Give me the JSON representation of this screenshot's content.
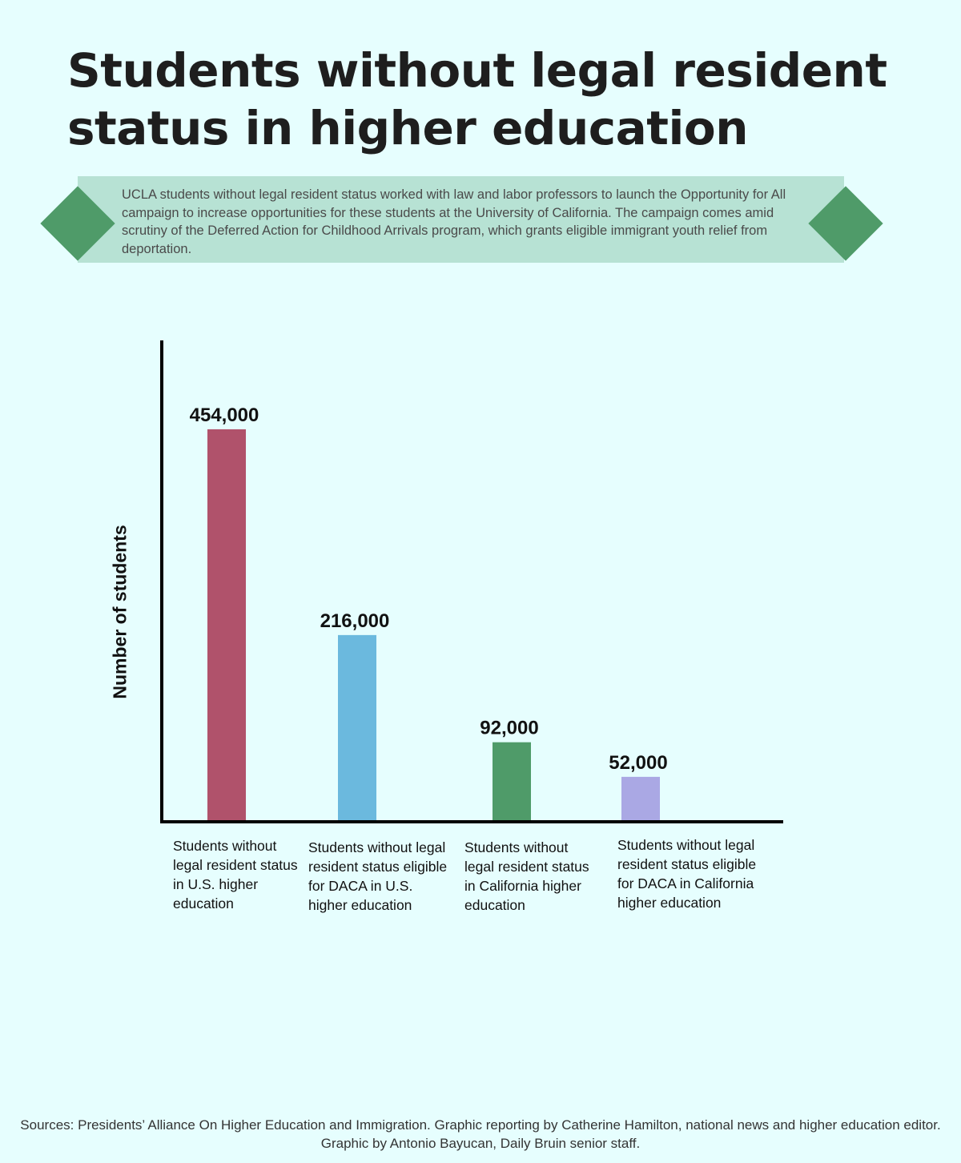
{
  "header": {
    "title": "Students without legal resident status in higher education",
    "intro": "UCLA students without legal resident status worked with law and labor professors to launch the Opportunity for All campaign to increase opportunities for these students at the University of California. The campaign comes amid scrutiny of the Deferred Action for Childhood Arrivals program, which grants eligible immigrant youth relief from deportation."
  },
  "colors": {
    "background": "#e6fefe",
    "banner": "#b7e2d4",
    "diamond": "#4f9b69"
  },
  "chart_data": {
    "type": "bar",
    "title": "Students without legal resident status in higher education",
    "xlabel": "",
    "ylabel": "Number of students",
    "ylim": [
      0,
      500000
    ],
    "grid": false,
    "legend": "none",
    "categories": [
      "Students without legal resident status in U.S. higher education",
      "Students without legal resident status eligible for DACA in U.S. higher education",
      "Students without legal resident status in California higher education",
      "Students without legal resident status eligible for DACA in California higher education"
    ],
    "values": [
      454000,
      216000,
      92000,
      52000
    ],
    "data_labels": [
      "454,000",
      "216,000",
      "92,000",
      "52,000"
    ],
    "colors": [
      "#b0526b",
      "#6bb9de",
      "#4f9b69",
      "#aaa8e4"
    ]
  },
  "footer": {
    "sources": "Sources: Presidents’ Alliance On Higher Education and Immigration. Graphic reporting by Catherine Hamilton, national news and higher education editor. Graphic by Antonio Bayucan, Daily Bruin senior staff."
  }
}
